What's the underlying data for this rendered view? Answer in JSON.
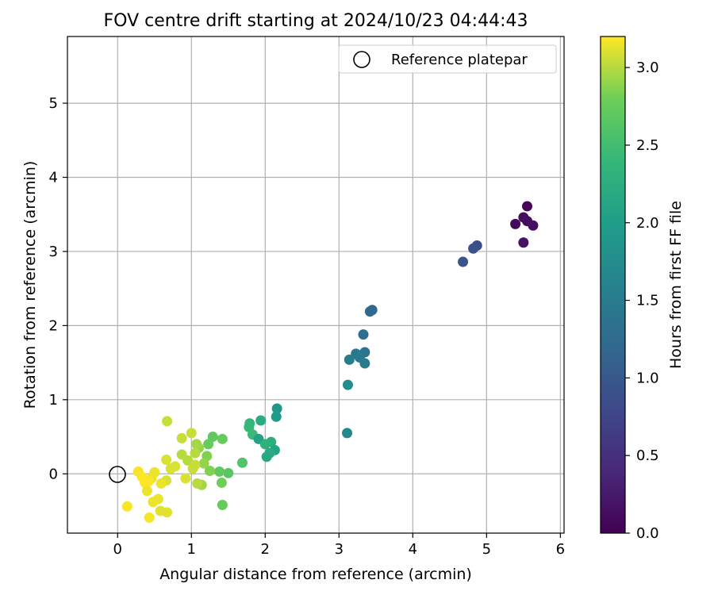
{
  "chart_data": {
    "type": "scatter",
    "title": "FOV centre drift starting at 2024/10/23 04:44:43",
    "xlabel": "Angular distance from reference (arcmin)",
    "ylabel": "Rotation from reference (arcmin)",
    "xlim": [
      -0.68,
      6.05
    ],
    "ylim": [
      -0.8,
      5.9
    ],
    "xticks": [
      0,
      1,
      2,
      3,
      4,
      5,
      6
    ],
    "yticks": [
      0,
      1,
      2,
      3,
      4,
      5
    ],
    "grid": true,
    "legend": {
      "placement": "top-right",
      "entries": [
        "Reference platepar"
      ]
    },
    "reference_point": {
      "x": 0,
      "y": 0
    },
    "colorbar": {
      "label": "Hours from first FF file",
      "colormap": "viridis",
      "range": [
        0.0,
        3.2
      ],
      "ticks": [
        "0.0",
        "0.5",
        "1.0",
        "1.5",
        "2.0",
        "2.5",
        "3.0"
      ]
    },
    "series": [
      {
        "points": [
          {
            "x": 5.55,
            "y": 3.61,
            "c": 0.05
          },
          {
            "x": 5.5,
            "y": 3.46,
            "c": 0.1
          },
          {
            "x": 5.55,
            "y": 3.41,
            "c": 0.12
          },
          {
            "x": 5.39,
            "y": 3.37,
            "c": 0.08
          },
          {
            "x": 5.63,
            "y": 3.35,
            "c": 0.15
          },
          {
            "x": 5.5,
            "y": 3.12,
            "c": 0.18
          },
          {
            "x": 4.87,
            "y": 3.08,
            "c": 0.85
          },
          {
            "x": 4.82,
            "y": 3.04,
            "c": 0.9
          },
          {
            "x": 4.68,
            "y": 2.86,
            "c": 0.95
          },
          {
            "x": 3.45,
            "y": 2.21,
            "c": 1.2
          },
          {
            "x": 3.42,
            "y": 2.19,
            "c": 1.22
          },
          {
            "x": 3.33,
            "y": 1.88,
            "c": 1.3
          },
          {
            "x": 3.23,
            "y": 1.62,
            "c": 1.45
          },
          {
            "x": 3.35,
            "y": 1.64,
            "c": 1.42
          },
          {
            "x": 3.28,
            "y": 1.57,
            "c": 1.48
          },
          {
            "x": 3.14,
            "y": 1.54,
            "c": 1.5
          },
          {
            "x": 3.35,
            "y": 1.49,
            "c": 1.5
          },
          {
            "x": 3.12,
            "y": 1.2,
            "c": 1.75
          },
          {
            "x": 3.11,
            "y": 0.55,
            "c": 1.7
          },
          {
            "x": 2.16,
            "y": 0.88,
            "c": 1.9
          },
          {
            "x": 2.15,
            "y": 0.77,
            "c": 1.95
          },
          {
            "x": 1.94,
            "y": 0.72,
            "c": 2.2
          },
          {
            "x": 1.79,
            "y": 0.68,
            "c": 2.35
          },
          {
            "x": 1.78,
            "y": 0.63,
            "c": 2.4
          },
          {
            "x": 1.83,
            "y": 0.53,
            "c": 2.45
          },
          {
            "x": 1.91,
            "y": 0.47,
            "c": 2.05
          },
          {
            "x": 2.08,
            "y": 0.43,
            "c": 2.25
          },
          {
            "x": 2.0,
            "y": 0.4,
            "c": 2.3
          },
          {
            "x": 2.13,
            "y": 0.32,
            "c": 2.1
          },
          {
            "x": 2.06,
            "y": 0.28,
            "c": 2.2
          },
          {
            "x": 2.02,
            "y": 0.23,
            "c": 2.15
          },
          {
            "x": 1.69,
            "y": 0.15,
            "c": 2.6
          },
          {
            "x": 1.5,
            "y": 0.01,
            "c": 2.65
          },
          {
            "x": 1.38,
            "y": 0.03,
            "c": 2.7
          },
          {
            "x": 1.29,
            "y": 0.5,
            "c": 2.7
          },
          {
            "x": 1.42,
            "y": 0.47,
            "c": 2.75
          },
          {
            "x": 1.23,
            "y": 0.4,
            "c": 2.75
          },
          {
            "x": 1.41,
            "y": -0.12,
            "c": 2.8
          },
          {
            "x": 1.42,
            "y": -0.42,
            "c": 2.75
          },
          {
            "x": 1.25,
            "y": 0.04,
            "c": 2.85
          },
          {
            "x": 1.21,
            "y": 0.24,
            "c": 2.85
          },
          {
            "x": 1.17,
            "y": 0.14,
            "c": 2.9
          },
          {
            "x": 1.14,
            "y": -0.15,
            "c": 2.95
          },
          {
            "x": 1.08,
            "y": -0.13,
            "c": 3.0
          },
          {
            "x": 1.1,
            "y": 0.35,
            "c": 2.9
          },
          {
            "x": 1.07,
            "y": 0.4,
            "c": 2.95
          },
          {
            "x": 1.05,
            "y": 0.28,
            "c": 3.0
          },
          {
            "x": 1.0,
            "y": 0.55,
            "c": 3.05
          },
          {
            "x": 0.87,
            "y": 0.48,
            "c": 3.05
          },
          {
            "x": 0.87,
            "y": 0.26,
            "c": 3.0
          },
          {
            "x": 0.95,
            "y": 0.18,
            "c": 3.0
          },
          {
            "x": 1.05,
            "y": 0.12,
            "c": 3.05
          },
          {
            "x": 1.02,
            "y": 0.07,
            "c": 3.05
          },
          {
            "x": 0.92,
            "y": -0.06,
            "c": 3.1
          },
          {
            "x": 0.78,
            "y": 0.1,
            "c": 3.1
          },
          {
            "x": 0.72,
            "y": 0.07,
            "c": 3.1
          },
          {
            "x": 0.66,
            "y": 0.19,
            "c": 3.1
          },
          {
            "x": 0.67,
            "y": 0.71,
            "c": 3.05
          },
          {
            "x": 0.66,
            "y": -0.09,
            "c": 3.1
          },
          {
            "x": 0.59,
            "y": -0.13,
            "c": 3.15
          },
          {
            "x": 0.5,
            "y": 0.02,
            "c": 3.15
          },
          {
            "x": 0.46,
            "y": -0.06,
            "c": 3.15
          },
          {
            "x": 0.42,
            "y": -0.1,
            "c": 3.2
          },
          {
            "x": 0.37,
            "y": -0.12,
            "c": 3.2
          },
          {
            "x": 0.33,
            "y": -0.04,
            "c": 3.2
          },
          {
            "x": 0.28,
            "y": 0.03,
            "c": 3.18
          },
          {
            "x": 0.4,
            "y": -0.23,
            "c": 3.15
          },
          {
            "x": 0.48,
            "y": -0.38,
            "c": 3.15
          },
          {
            "x": 0.55,
            "y": -0.34,
            "c": 3.15
          },
          {
            "x": 0.58,
            "y": -0.5,
            "c": 3.12
          },
          {
            "x": 0.67,
            "y": -0.52,
            "c": 3.12
          },
          {
            "x": 0.13,
            "y": -0.44,
            "c": 3.18
          },
          {
            "x": 0.43,
            "y": -0.59,
            "c": 3.18
          }
        ]
      }
    ]
  }
}
